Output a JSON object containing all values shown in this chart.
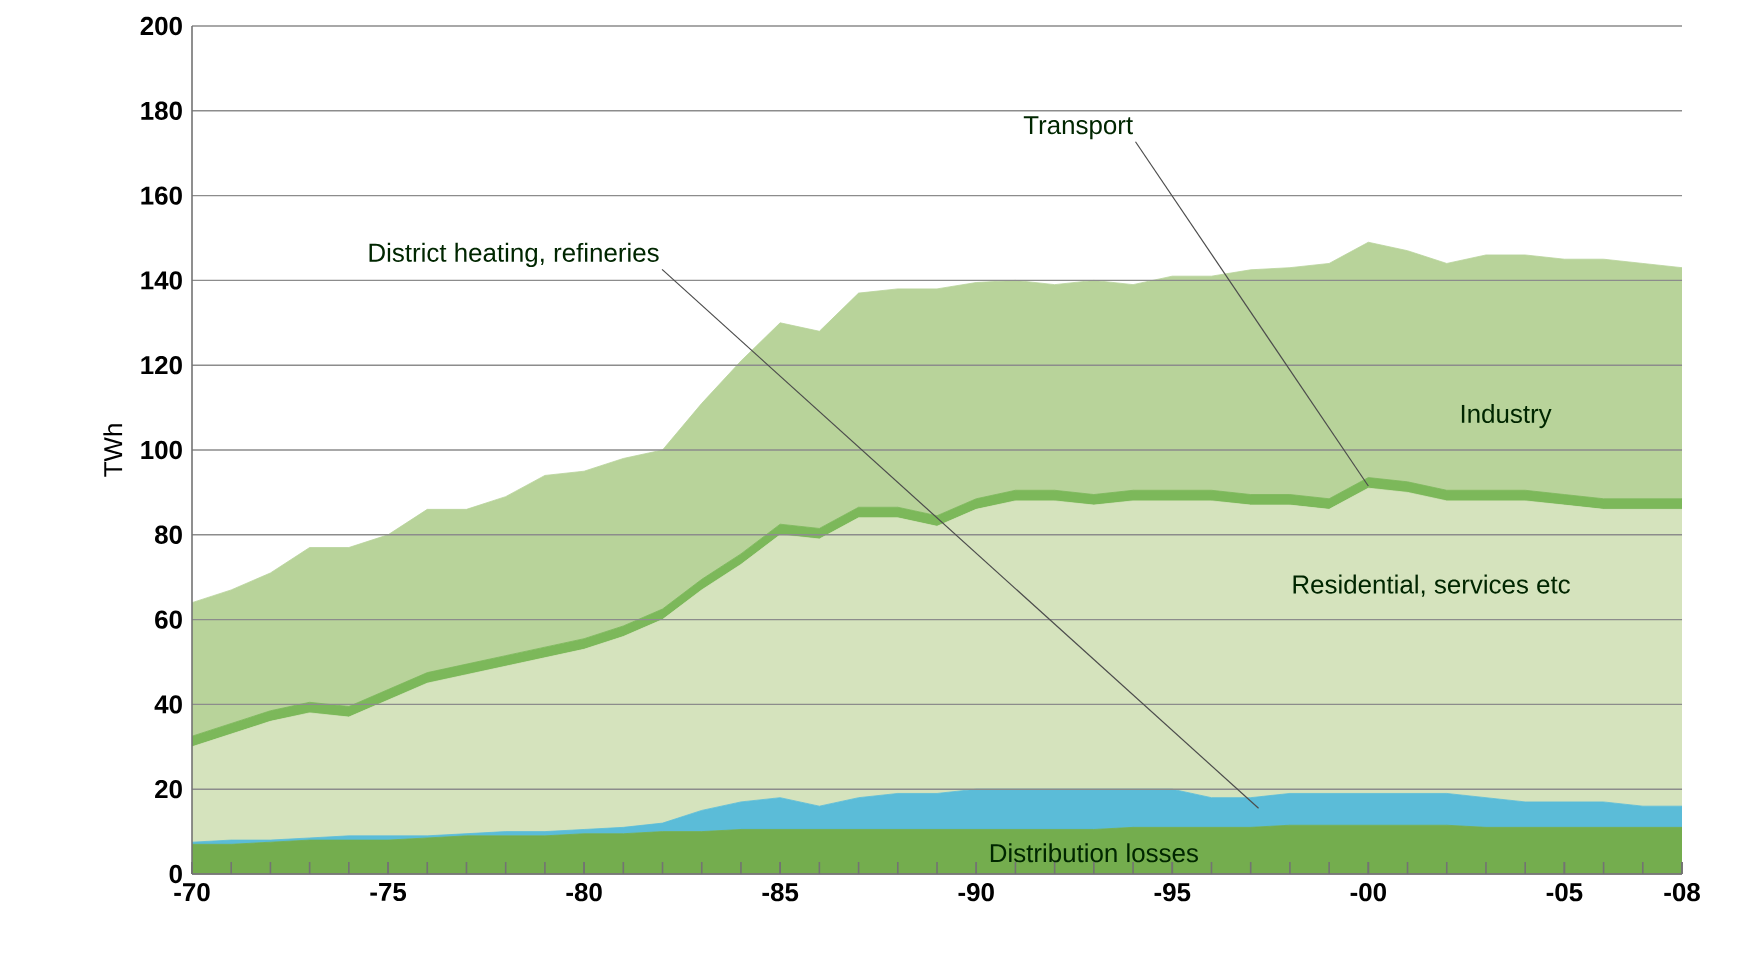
{
  "chart_data": {
    "type": "area",
    "stacked": true,
    "ylabel": "TWh",
    "categories": [
      "-70",
      null,
      null,
      null,
      null,
      "-75",
      null,
      null,
      null,
      null,
      "-80",
      null,
      null,
      null,
      null,
      "-85",
      null,
      null,
      null,
      null,
      "-90",
      null,
      null,
      null,
      null,
      "-95",
      null,
      null,
      null,
      null,
      "-00",
      null,
      null,
      null,
      null,
      "-05",
      null,
      null,
      "-08"
    ],
    "ylim": [
      0,
      200
    ],
    "yticks": [
      0,
      20,
      40,
      60,
      80,
      100,
      120,
      140,
      160,
      180,
      200
    ],
    "grid": "y",
    "series": [
      {
        "name": "Distribution losses",
        "color": "#74ad4e",
        "values": [
          7,
          7,
          7.5,
          8,
          8,
          8,
          8.5,
          9,
          9,
          9,
          9.5,
          9.5,
          10,
          10,
          10.5,
          10.5,
          10.5,
          10.5,
          10.5,
          10.5,
          10.5,
          10.5,
          10.5,
          10.5,
          11,
          11,
          11,
          11,
          11.5,
          11.5,
          11.5,
          11.5,
          11.5,
          11,
          11,
          11,
          11,
          11,
          11
        ]
      },
      {
        "name": "District heating, refineries",
        "color": "#5bbcd8",
        "values": [
          0.5,
          1,
          0.5,
          0.5,
          1,
          1,
          0.5,
          0.5,
          1,
          1,
          1,
          1.5,
          2,
          5,
          6.5,
          7.5,
          5.5,
          7.5,
          8.5,
          8.5,
          9.5,
          9.5,
          9.5,
          9.5,
          9,
          9,
          7,
          7,
          7.5,
          7.5,
          7.5,
          7.5,
          7.5,
          7,
          6,
          6,
          6,
          5,
          5
        ]
      },
      {
        "name": "Residential, services etc",
        "color": "#d5e3bd",
        "values": [
          22.5,
          25,
          28,
          29.5,
          28,
          32,
          36,
          37.5,
          39,
          41,
          42.5,
          45,
          48,
          52,
          56,
          62,
          63,
          66,
          65,
          63,
          66,
          68,
          68,
          67,
          68,
          68,
          70,
          69,
          68,
          67,
          72,
          71,
          69,
          70,
          71,
          70,
          69,
          70,
          70
        ]
      },
      {
        "name": "Transport",
        "color": "#7cb85a",
        "values": [
          2.5,
          2.5,
          2.5,
          2.5,
          2.5,
          2.5,
          2.5,
          2.5,
          2.5,
          2.5,
          2.5,
          2.5,
          2.5,
          2.5,
          2.5,
          2.5,
          2.5,
          2.5,
          2.5,
          2.5,
          2.5,
          2.5,
          2.5,
          2.5,
          2.5,
          2.5,
          2.5,
          2.5,
          2.5,
          2.5,
          2.5,
          2.5,
          2.5,
          2.5,
          2.5,
          2.5,
          2.5,
          2.5,
          2.5
        ]
      },
      {
        "name": "Industry",
        "color": "#b8d39a",
        "values": [
          31.5,
          31.5,
          32.5,
          36.5,
          37.5,
          36.5,
          38.5,
          36.5,
          37.5,
          40.5,
          39.5,
          39.5,
          37.5,
          41.5,
          45.5,
          47.5,
          46.5,
          50.5,
          51.5,
          53.5,
          51,
          49.5,
          48.5,
          50.5,
          48.5,
          50.5,
          50.5,
          53,
          53.5,
          55.5,
          55.5,
          54.5,
          53.5,
          55.5,
          55.5,
          55.5,
          56.5,
          55.5,
          54.5
        ]
      }
    ]
  }
}
